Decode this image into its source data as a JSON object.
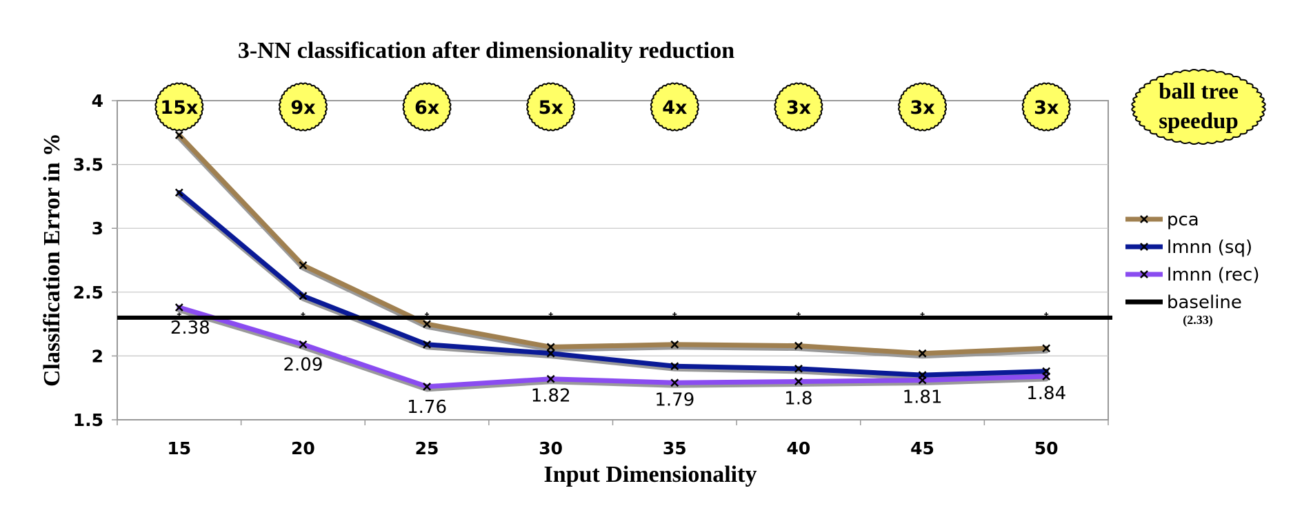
{
  "chart_data": {
    "type": "line",
    "title": "3-NN classification after dimensionality reduction",
    "xlabel": "Input Dimensionality",
    "ylabel": "Classification Error in %",
    "categories": [
      "15",
      "20",
      "25",
      "30",
      "35",
      "40",
      "45",
      "50"
    ],
    "ylim": [
      1.5,
      4
    ],
    "yticks": [
      "1.5",
      "2",
      "2.5",
      "3",
      "3.5",
      "4"
    ],
    "grid": true,
    "legend": "right",
    "series": [
      {
        "name": "pca",
        "color": "#a08050",
        "values": [
          3.73,
          2.71,
          2.25,
          2.07,
          2.09,
          2.08,
          2.02,
          2.06
        ]
      },
      {
        "name": "lmnn (sq)",
        "color": "#0a1a96",
        "values": [
          3.28,
          2.47,
          2.09,
          2.02,
          1.92,
          1.9,
          1.85,
          1.88
        ]
      },
      {
        "name": "lmnn (rec)",
        "color": "#8a4cf0",
        "values": [
          2.38,
          2.09,
          1.76,
          1.82,
          1.79,
          1.8,
          1.81,
          1.84
        ]
      }
    ],
    "rec_labels": [
      "2.38",
      "2.09",
      "1.76",
      "1.82",
      "1.79",
      "1.8",
      "1.81",
      "1.84"
    ],
    "baseline": {
      "name": "baseline",
      "value": 2.3,
      "note": "(2.33)",
      "color": "#000000"
    },
    "speedup": {
      "title_line1": "ball tree",
      "title_line2": "speedup",
      "values": [
        "15x",
        "9x",
        "6x",
        "5x",
        "4x",
        "3x",
        "3x",
        "3x"
      ],
      "fill": "#ffff66"
    }
  }
}
